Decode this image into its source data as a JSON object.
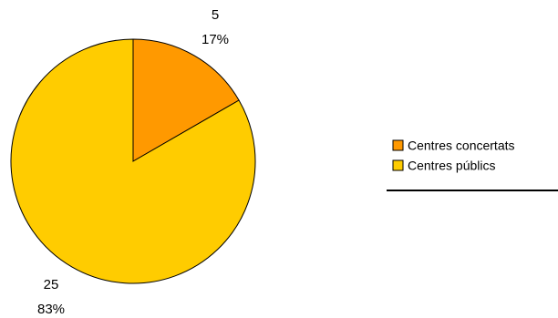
{
  "chart_data": {
    "type": "pie",
    "title": "",
    "categories": [
      "Centres concertats",
      "Centres públics"
    ],
    "values": [
      5,
      25
    ],
    "percent_labels": [
      "17%",
      "83%"
    ],
    "colors": [
      "#FF9900",
      "#FFCC00"
    ],
    "legend_position": "right"
  }
}
